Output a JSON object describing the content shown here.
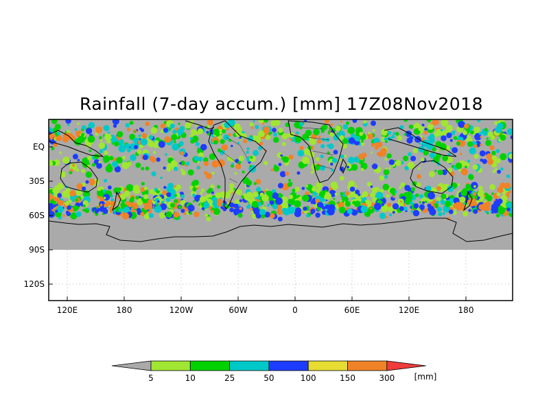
{
  "title": "Rainfall (7-day accum.) [mm] 17Z08Nov2018",
  "map": {
    "y_ticks": [
      "EQ",
      "30S",
      "60S",
      "90S",
      "120S"
    ],
    "x_ticks": [
      "120E",
      "180",
      "120W",
      "60W",
      "0",
      "60E",
      "120E",
      "180"
    ],
    "no_data_color": "#aaaaaa"
  },
  "colorbar": {
    "labels": [
      "5",
      "10",
      "25",
      "50",
      "100",
      "150",
      "300"
    ],
    "units": "[mm]",
    "colors": [
      "#aaaaaa",
      "#a0e632",
      "#00d200",
      "#00c8c8",
      "#1e3cff",
      "#e6dc32",
      "#f08228",
      "#f03c3c"
    ]
  }
}
